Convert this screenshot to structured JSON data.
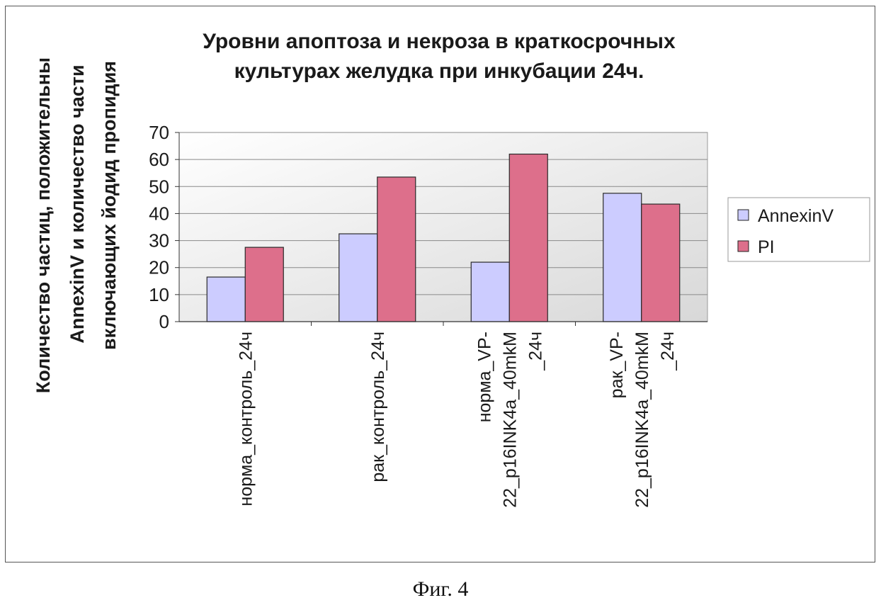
{
  "chart_data": {
    "type": "bar",
    "title_lines": [
      "Уровни апоптоза и некроза в краткосрочных",
      "культурах желудка при инкубации 24ч."
    ],
    "ylabel_lines": [
      "Количество частиц, положительны",
      "AnnexinV и количество части",
      "включающих йодид пропидия"
    ],
    "categories": [
      [
        "норма_контроль_24ч"
      ],
      [
        "рак_контроль_24ч"
      ],
      [
        "норма_VP-",
        "22_p16INK4a_40mkM",
        "_24ч"
      ],
      [
        "рак_VP-",
        "22_p16INK4a_40mkM",
        "_24ч"
      ]
    ],
    "series": [
      {
        "name": "AnnexinV",
        "color": "#ccccff",
        "values": [
          16.5,
          32.5,
          22,
          47.5
        ]
      },
      {
        "name": "PI",
        "color": "#dd6f8b",
        "values": [
          27.5,
          53.5,
          62,
          43.5
        ]
      }
    ],
    "ylim": [
      0,
      70
    ],
    "yticks": [
      0,
      10,
      20,
      30,
      40,
      50,
      60,
      70
    ],
    "grid": true,
    "legend_position": "right",
    "plot_background": "#ffffff"
  },
  "caption": "Фиг. 4"
}
